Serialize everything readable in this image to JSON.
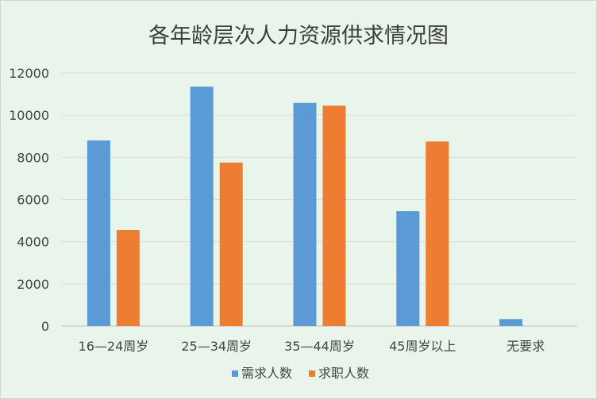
{
  "chart_data": {
    "type": "bar",
    "title": "各年龄层次人力资源供求情况图",
    "categories": [
      "16—24周岁",
      "25—34周岁",
      "35—44周岁",
      "45周岁以上",
      "无要求"
    ],
    "series": [
      {
        "name": "需求人数",
        "color": "#5b9bd5",
        "values": [
          8800,
          11350,
          10580,
          5450,
          330
        ]
      },
      {
        "name": "求职人数",
        "color": "#ed7d31",
        "values": [
          4550,
          7750,
          10450,
          8750,
          0
        ]
      }
    ],
    "yticks": [
      0,
      2000,
      4000,
      6000,
      8000,
      10000,
      12000
    ],
    "ylim": [
      0,
      12000
    ],
    "grid": true,
    "legend_position": "bottom"
  }
}
